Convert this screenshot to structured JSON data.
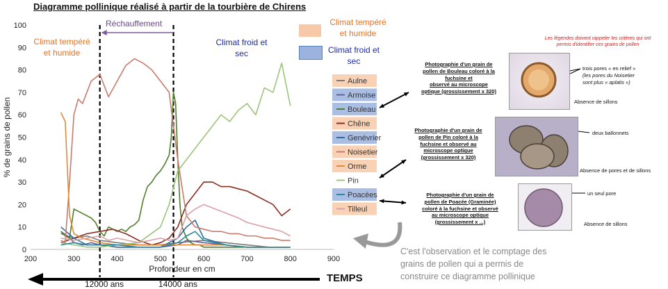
{
  "title": "Diagramme pollinique réalisé à partir de la tourbière de Chirens",
  "annotations": {
    "climat_tempere_left": [
      "Climat tempéré",
      "et humide"
    ],
    "rechauffement": "Réchauffement",
    "climat_froid_center": [
      "Climat froid et",
      "sec"
    ],
    "legend_tempere": [
      "Climat tempéré",
      "et humide"
    ],
    "legend_froid": [
      "Climat froid et",
      "sec"
    ]
  },
  "time_axis": {
    "label": "TEMPS",
    "age_12000": "12000 ans",
    "age_14000": "14000 ans"
  },
  "photos": {
    "red_note": [
      "Les légendes doivent rappeler les critères qui ont",
      "permis d'identifier ces grains de pollen"
    ],
    "bouleau_caption": [
      "Photographie d'un grain de",
      "pollen de Bouleau coloré à la",
      "fuchsine et",
      "observé au microscope",
      "optique (grossissement x 320)"
    ],
    "bouleau_label": [
      "trois pores « en relief »",
      "(les pores du Noisetier",
      "sont plus « aplatis »)"
    ],
    "bouleau_sillons": "Absence de sillons",
    "pin_caption": [
      "Photographie d'un grain de",
      "pollen de Pin coloré à la",
      "fuchsine et observé au",
      "microscope optique",
      "(grossissement x 320)"
    ],
    "pin_label": "deux ballonnets",
    "pin_sillons": "Absence de pores et de sillons",
    "poacee_caption": [
      "Photographie d'un grain de",
      "pollen de Poacée (Graminée)",
      "coloré à la fuchsine et observé",
      "au microscope optique",
      "(grossissement x ...)"
    ],
    "poacee_label": "un seul pore",
    "poacee_sillons": "Absence de sillons"
  },
  "bottom_note": [
    "C'est l'observation et le comptage des",
    "grains de pollen qui a permis de",
    "construire ce diagramme pollinique"
  ],
  "colors": {
    "orange_box": "#f8c9a8",
    "blue_box": "#9bb3de",
    "Aulne": "#7a7a7a",
    "Armoise": "#6b5e9c",
    "Bouleau": "#4f7d2c",
    "Chêne": "#8b2c22",
    "Genévrier": "#2f6e9c",
    "Noisetier": "#c97a6a",
    "Orme": "#e08a3a",
    "Pin": "#9cc47a",
    "Poacées": "#2b8a9a",
    "Tilleul": "#d9a0a6"
  },
  "chart_data": {
    "type": "line",
    "title": "Diagramme pollinique réalisé à partir de la tourbière de Chirens",
    "xlabel": "Profondeur en cm",
    "ylabel": "% de grains de pollen",
    "xlim": [
      200,
      900
    ],
    "ylim": [
      0,
      100
    ],
    "x_ticks": [
      200,
      300,
      400,
      500,
      600,
      700,
      800,
      900
    ],
    "y_ticks": [
      0,
      10,
      20,
      30,
      40,
      50,
      60,
      70,
      80,
      90,
      100
    ],
    "vertical_markers": [
      360,
      530
    ],
    "grid": false,
    "legend_position": "right",
    "series": [
      {
        "name": "Aulne",
        "x": [
          270,
          300,
          330,
          360,
          400,
          450,
          500,
          540,
          600,
          650,
          700,
          750,
          800
        ],
        "values": [
          7,
          5,
          6,
          4,
          3,
          2,
          2,
          3,
          4,
          3,
          2,
          1,
          1
        ]
      },
      {
        "name": "Armoise",
        "x": [
          270,
          285,
          300,
          320,
          340,
          360,
          400,
          450,
          500,
          540,
          560,
          600,
          650,
          700,
          750,
          800
        ],
        "values": [
          8,
          6,
          3,
          2,
          3,
          2,
          1,
          1,
          1,
          2,
          4,
          3,
          2,
          1,
          1,
          1
        ]
      },
      {
        "name": "Bouleau",
        "x": [
          270,
          280,
          290,
          300,
          310,
          320,
          330,
          340,
          350,
          360,
          370,
          380,
          390,
          400,
          410,
          420,
          430,
          440,
          450,
          460,
          470,
          480,
          490,
          500,
          510,
          520,
          525,
          530,
          535,
          540,
          545,
          550,
          560,
          570,
          580,
          590,
          600,
          650,
          700,
          750,
          800
        ],
        "values": [
          8,
          6,
          5,
          18,
          17,
          16,
          15,
          14,
          12,
          8,
          6,
          10,
          9,
          8,
          9,
          8,
          10,
          11,
          13,
          22,
          28,
          30,
          33,
          35,
          38,
          42,
          50,
          70,
          65,
          40,
          20,
          10,
          5,
          3,
          2,
          2,
          1,
          1,
          1,
          1,
          1
        ]
      },
      {
        "name": "Chêne",
        "x": [
          270,
          300,
          330,
          360,
          390,
          420,
          450,
          480,
          500,
          520,
          540,
          560,
          580,
          600,
          620,
          640,
          660,
          680,
          700,
          720,
          740,
          760,
          780,
          800
        ],
        "values": [
          3,
          5,
          7,
          8,
          9,
          7,
          4,
          2,
          3,
          5,
          10,
          20,
          25,
          30,
          30,
          28,
          28,
          27,
          26,
          24,
          22,
          20,
          15,
          18
        ]
      },
      {
        "name": "Genévrier",
        "x": [
          270,
          300,
          330,
          360,
          400,
          450,
          500,
          540,
          560,
          580,
          600,
          650,
          700,
          750,
          800
        ],
        "values": [
          10,
          5,
          2,
          2,
          1,
          1,
          1,
          5,
          10,
          13,
          5,
          2,
          1,
          1,
          1
        ]
      },
      {
        "name": "Noisetier",
        "x": [
          270,
          280,
          290,
          300,
          310,
          320,
          340,
          360,
          380,
          400,
          420,
          440,
          460,
          480,
          500,
          520,
          540,
          560,
          580,
          600,
          620,
          640,
          660,
          680,
          700,
          720,
          740,
          760,
          780,
          800
        ],
        "values": [
          4,
          3,
          30,
          60,
          67,
          65,
          75,
          78,
          68,
          75,
          82,
          85,
          83,
          80,
          75,
          70,
          40,
          15,
          10,
          9,
          8,
          8,
          7,
          7,
          6,
          6,
          5,
          5,
          4,
          4
        ]
      },
      {
        "name": "Orme",
        "x": [
          270,
          280,
          290,
          300,
          320,
          340,
          360,
          400,
          450,
          500,
          550,
          600,
          650,
          700,
          750,
          800
        ],
        "values": [
          61,
          57,
          15,
          7,
          5,
          4,
          3,
          2,
          2,
          2,
          2,
          2,
          2,
          1,
          1,
          1
        ]
      },
      {
        "name": "Pin",
        "x": [
          270,
          300,
          330,
          360,
          400,
          450,
          500,
          520,
          540,
          560,
          580,
          600,
          620,
          640,
          660,
          680,
          700,
          720,
          740,
          760,
          780,
          800
        ],
        "values": [
          3,
          2,
          1,
          1,
          2,
          3,
          10,
          20,
          35,
          40,
          45,
          50,
          55,
          60,
          57,
          62,
          65,
          60,
          72,
          70,
          83,
          64
        ]
      },
      {
        "name": "Poacées",
        "x": [
          270,
          300,
          330,
          360,
          400,
          450,
          500,
          540,
          560,
          580,
          600,
          650,
          700,
          750,
          800
        ],
        "values": [
          2,
          3,
          2,
          2,
          2,
          1,
          1,
          3,
          6,
          8,
          4,
          2,
          1,
          1,
          1
        ]
      },
      {
        "name": "Tilleul",
        "x": [
          270,
          300,
          330,
          360,
          380,
          400,
          450,
          500,
          520,
          540,
          560,
          580,
          600,
          640,
          680,
          700,
          740,
          780,
          800
        ],
        "values": [
          5,
          4,
          5,
          6,
          4,
          5,
          3,
          5,
          4,
          5,
          15,
          18,
          20,
          17,
          14,
          12,
          10,
          8,
          6
        ]
      }
    ]
  }
}
